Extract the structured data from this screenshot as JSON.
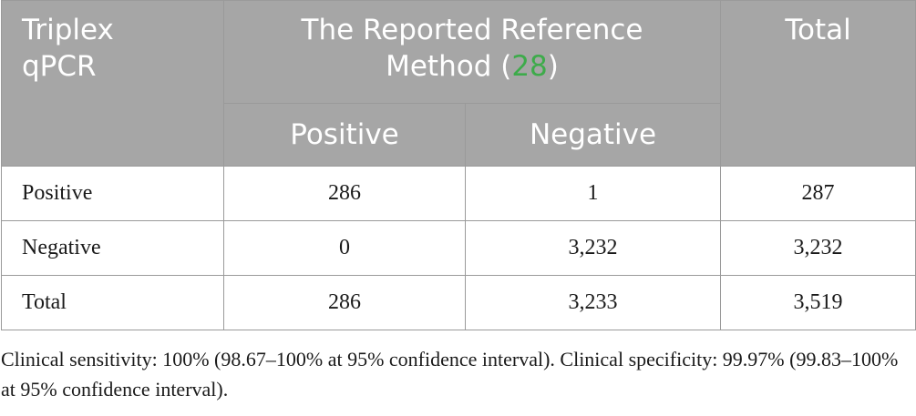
{
  "table": {
    "header": {
      "stub": [
        "Triplex",
        "qPCR"
      ],
      "group_text_line1": "The Reported Reference",
      "group_text_line2_prefix": "Method (",
      "group_ref": "28",
      "group_text_line2_suffix": ")",
      "total": "Total",
      "sub_positive": "Positive",
      "sub_negative": "Negative"
    },
    "rows": [
      {
        "label": "Positive",
        "positive": "286",
        "negative": "1",
        "total": "287"
      },
      {
        "label": "Negative",
        "positive": "0",
        "negative": "3,232",
        "total": "3,232"
      },
      {
        "label": "Total",
        "positive": "286",
        "negative": "3,233",
        "total": "3,519"
      }
    ]
  },
  "footnote": "Clinical sensitivity: 100% (98.67–100% at 95% confidence interval). Clinical specificity: 99.97% (99.83–100% at 95% confidence interval).",
  "colors": {
    "header_bg": "#a6a6a6",
    "header_text": "#ffffff",
    "reference_link": "#3dab4a",
    "border": "#9a9a9a",
    "body_text": "#1a1a1a"
  }
}
